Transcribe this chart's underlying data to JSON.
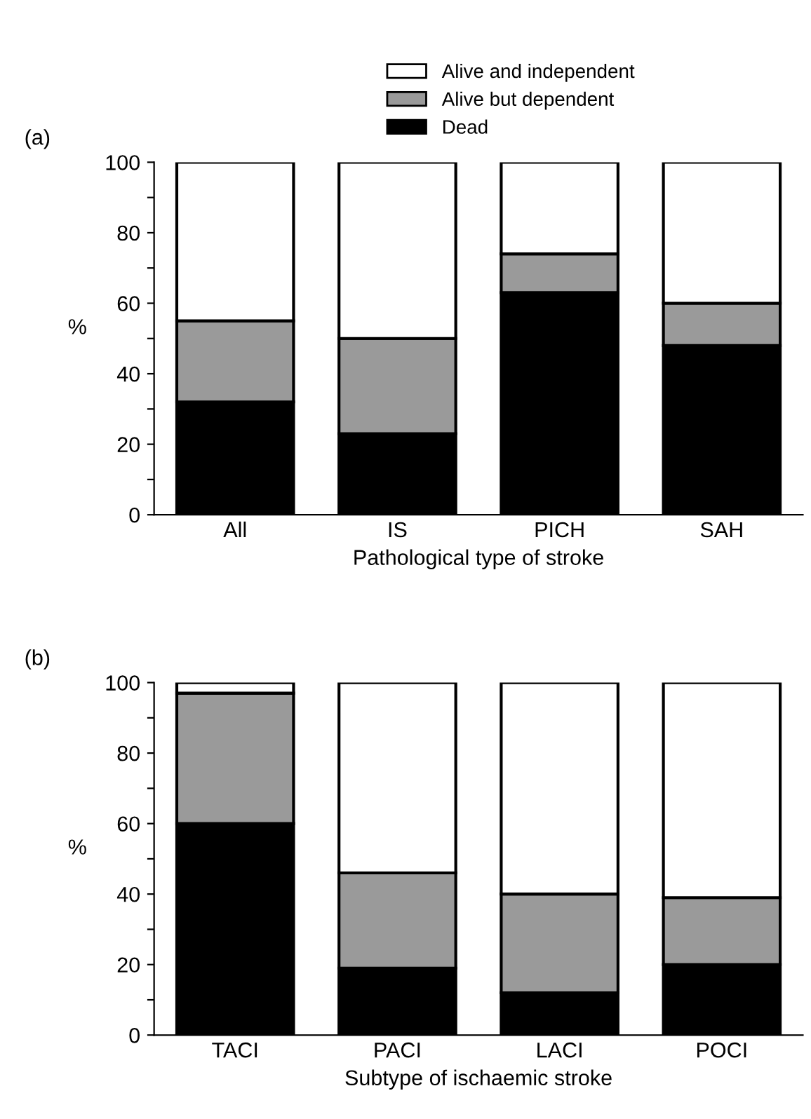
{
  "chart_data": [
    {
      "type": "bar",
      "stacked": true,
      "annotations": [
        "(a)"
      ],
      "xlabel": "Pathological type of stroke",
      "ylabel": "%",
      "categories": [
        "All",
        "IS",
        "PICH",
        "SAH"
      ],
      "legend": "top",
      "ylim": [
        0,
        100
      ],
      "yticks": [
        0,
        {
          "value": 10,
          "label": null
        },
        20,
        {
          "value": 30,
          "label": null
        },
        40,
        {
          "value": 50,
          "label": null
        },
        60,
        {
          "value": 70,
          "label": null
        },
        80,
        {
          "value": 90,
          "label": null
        },
        100
      ],
      "series": [
        {
          "name": "Dead",
          "color": "#000000",
          "values": [
            32,
            23,
            63,
            48
          ]
        },
        {
          "name": "Alive but dependent",
          "color": "#9a9a9a",
          "values": [
            23,
            27,
            11,
            12
          ]
        },
        {
          "name": "Alive and independent",
          "color": "#ffffff",
          "values": [
            45,
            50,
            26,
            40
          ]
        }
      ]
    },
    {
      "type": "bar",
      "stacked": true,
      "annotations": [
        "(b)"
      ],
      "xlabel": "Subtype of ischaemic stroke",
      "ylabel": "%",
      "categories": [
        "TACI",
        "PACI",
        "LACI",
        "POCI"
      ],
      "ylim": [
        0,
        100
      ],
      "yticks": [
        0,
        {
          "value": 10,
          "label": null
        },
        20,
        {
          "value": 30,
          "label": null
        },
        40,
        {
          "value": 50,
          "label": null
        },
        60,
        {
          "value": 70,
          "label": null
        },
        80,
        {
          "value": 90,
          "label": null
        },
        100
      ],
      "series": [
        {
          "color": "#000000",
          "values": [
            60,
            19,
            12,
            20
          ]
        },
        {
          "color": "#9a9a9a",
          "values": [
            37,
            27,
            28,
            19
          ]
        },
        {
          "color": "#ffffff",
          "values": [
            3,
            54,
            60,
            61
          ]
        }
      ]
    }
  ]
}
